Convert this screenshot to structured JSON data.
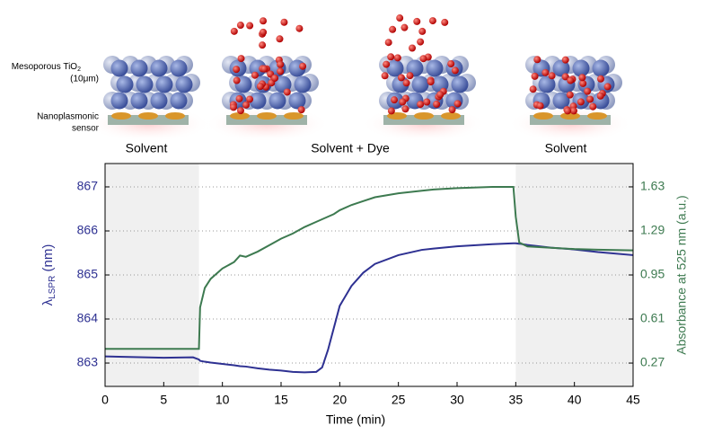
{
  "illustration": {
    "material_label": "Mesoporous TiO",
    "material_subscript": "2",
    "material_size": "(10μm)",
    "sensor_label_1": "Nanoplasmonic",
    "sensor_label_2": "sensor",
    "captions": [
      "Solvent",
      "Solvent + Dye",
      "Solvent"
    ]
  },
  "chart_data": {
    "type": "line",
    "xlabel": "Time (min)",
    "ylabel": {
      "symbol": "λ",
      "subscript": "LSPR",
      "unit": "(nm)"
    },
    "y2label": "Absorbance at 525 nm (a.u.)",
    "x": [
      0,
      5,
      7.5,
      8,
      8.1,
      8.5,
      9,
      10,
      11,
      11.5,
      12,
      13,
      14,
      15,
      16,
      17,
      18,
      18.5,
      19,
      19.5,
      20,
      21,
      22,
      23,
      25,
      27,
      28,
      30,
      33,
      34.8,
      35,
      35.3,
      36,
      38,
      40,
      42,
      45
    ],
    "series": [
      {
        "color": "#2e3192",
        "values": [
          863.15,
          863.12,
          863.13,
          863.08,
          863.05,
          863.03,
          863.01,
          862.98,
          862.95,
          862.93,
          862.92,
          862.88,
          862.85,
          862.83,
          862.8,
          862.79,
          862.8,
          862.9,
          863.3,
          863.8,
          864.3,
          864.75,
          865.05,
          865.25,
          865.45,
          865.57,
          865.6,
          865.65,
          865.7,
          865.72,
          865.72,
          865.71,
          865.68,
          865.62,
          865.58,
          865.52,
          865.45
        ]
      },
      {
        "color": "#3d7a50",
        "axis": "y2",
        "values": [
          0.38,
          0.38,
          0.38,
          0.38,
          0.7,
          0.85,
          0.92,
          1.0,
          1.05,
          1.1,
          1.09,
          1.13,
          1.18,
          1.23,
          1.27,
          1.32,
          1.36,
          1.38,
          1.4,
          1.42,
          1.45,
          1.49,
          1.52,
          1.55,
          1.58,
          1.6,
          1.61,
          1.62,
          1.63,
          1.63,
          1.4,
          1.2,
          1.17,
          1.16,
          1.15,
          1.145,
          1.14
        ]
      }
    ],
    "xlim": [
      0,
      45
    ],
    "xticks": [
      0,
      5,
      10,
      15,
      20,
      25,
      30,
      35,
      40,
      45
    ],
    "ylim": [
      862.47,
      867.53
    ],
    "yticks": [
      863,
      864,
      865,
      866,
      867
    ],
    "y2lim": [
      0.09,
      1.81
    ],
    "y2ticks": [
      0.27,
      0.61,
      0.95,
      1.29,
      1.63
    ],
    "shaded": [
      [
        0,
        8
      ],
      [
        35,
        45
      ]
    ],
    "grid": true
  }
}
